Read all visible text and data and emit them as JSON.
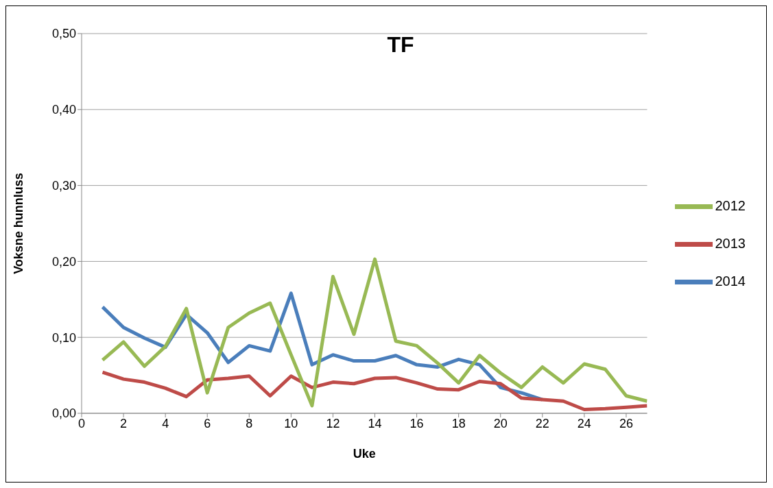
{
  "chart_data": {
    "type": "line",
    "title": "TF",
    "xlabel": "Uke",
    "ylabel": "Voksne hunnluss",
    "x": [
      1,
      2,
      3,
      4,
      5,
      6,
      7,
      8,
      9,
      10,
      11,
      12,
      13,
      14,
      15,
      16,
      17,
      18,
      19,
      20,
      21,
      22,
      23,
      24,
      25,
      26,
      27
    ],
    "series": [
      {
        "name": "2014",
        "color": "#4a7ebb",
        "values": [
          0.14,
          0.113,
          0.099,
          0.087,
          0.13,
          0.106,
          0.067,
          0.089,
          0.082,
          0.158,
          0.064,
          0.077,
          0.069,
          0.069,
          0.076,
          0.064,
          0.061,
          0.071,
          0.064,
          0.034,
          0.027,
          0.018,
          null,
          null,
          null,
          null,
          null
        ]
      },
      {
        "name": "2013",
        "color": "#be4b48",
        "values": [
          0.054,
          0.045,
          0.041,
          0.033,
          0.022,
          0.044,
          0.046,
          0.049,
          0.023,
          0.049,
          0.034,
          0.041,
          0.039,
          0.046,
          0.047,
          0.04,
          0.032,
          0.031,
          0.042,
          0.039,
          0.02,
          0.018,
          0.016,
          0.005,
          0.006,
          0.008,
          0.01
        ]
      },
      {
        "name": "2012",
        "color": "#98b954",
        "values": [
          0.07,
          0.094,
          0.062,
          0.088,
          0.138,
          0.027,
          0.113,
          0.132,
          0.145,
          0.077,
          0.01,
          0.18,
          0.104,
          0.203,
          0.095,
          0.089,
          0.066,
          0.04,
          0.076,
          0.053,
          0.034,
          0.061,
          0.04,
          0.065,
          0.058,
          0.023,
          0.016
        ]
      }
    ],
    "xlim": [
      0,
      27
    ],
    "xticks": [
      0,
      2,
      4,
      6,
      8,
      10,
      12,
      14,
      16,
      18,
      20,
      22,
      24,
      26
    ],
    "ylim": [
      0,
      0.5
    ],
    "yticks": [
      {
        "value": 0,
        "label": "0,00"
      },
      {
        "value": 0.1,
        "label": "0,10"
      },
      {
        "value": 0.2,
        "label": "0,20"
      },
      {
        "value": 0.3,
        "label": "0,30"
      },
      {
        "value": 0.4,
        "label": "0,40"
      },
      {
        "value": 0.5,
        "label": "0,50"
      }
    ],
    "grid": "y",
    "legend": "right",
    "marker": "none",
    "line_style": "solid"
  }
}
